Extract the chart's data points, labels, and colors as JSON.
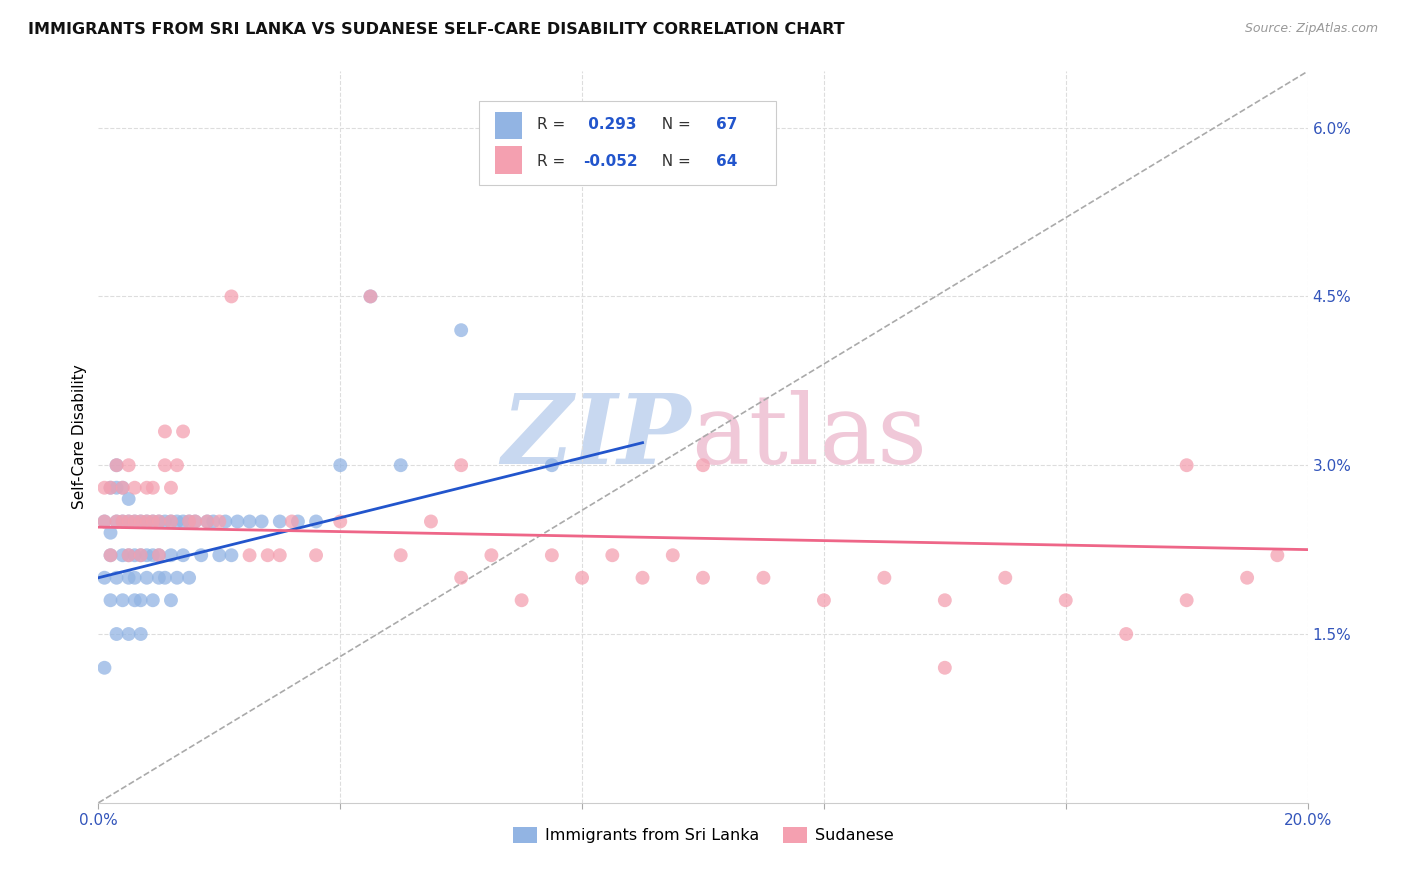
{
  "title": "IMMIGRANTS FROM SRI LANKA VS SUDANESE SELF-CARE DISABILITY CORRELATION CHART",
  "source": "Source: ZipAtlas.com",
  "ylabel": "Self-Care Disability",
  "x_min": 0.0,
  "x_max": 0.2,
  "y_min": 0.0,
  "y_max": 0.065,
  "y_ticks_right": [
    0.015,
    0.03,
    0.045,
    0.06
  ],
  "y_tick_labels_right": [
    "1.5%",
    "3.0%",
    "4.5%",
    "6.0%"
  ],
  "sri_lanka_R": 0.293,
  "sri_lanka_N": 67,
  "sudanese_R": -0.052,
  "sudanese_N": 64,
  "sri_lanka_color": "#92B4E3",
  "sudanese_color": "#F4A0B0",
  "sri_lanka_line_color": "#2255CC",
  "sudanese_line_color": "#EE6688",
  "diagonal_line_color": "#AAAAAA",
  "watermark_color_zip": "#C8D8F0",
  "watermark_color_atlas": "#F0C8D8",
  "legend_label_1": "Immigrants from Sri Lanka",
  "legend_label_2": "Sudanese",
  "sri_lanka_x": [
    0.001,
    0.001,
    0.001,
    0.002,
    0.002,
    0.002,
    0.002,
    0.003,
    0.003,
    0.003,
    0.003,
    0.003,
    0.004,
    0.004,
    0.004,
    0.004,
    0.005,
    0.005,
    0.005,
    0.005,
    0.005,
    0.006,
    0.006,
    0.006,
    0.006,
    0.007,
    0.007,
    0.007,
    0.007,
    0.008,
    0.008,
    0.008,
    0.009,
    0.009,
    0.009,
    0.01,
    0.01,
    0.01,
    0.011,
    0.011,
    0.012,
    0.012,
    0.012,
    0.013,
    0.013,
    0.014,
    0.014,
    0.015,
    0.015,
    0.016,
    0.017,
    0.018,
    0.019,
    0.02,
    0.021,
    0.022,
    0.023,
    0.025,
    0.027,
    0.03,
    0.033,
    0.036,
    0.04,
    0.045,
    0.05,
    0.06,
    0.075
  ],
  "sri_lanka_y": [
    0.02,
    0.025,
    0.012,
    0.018,
    0.024,
    0.028,
    0.022,
    0.025,
    0.028,
    0.02,
    0.015,
    0.03,
    0.022,
    0.018,
    0.025,
    0.028,
    0.02,
    0.015,
    0.025,
    0.022,
    0.027,
    0.018,
    0.022,
    0.025,
    0.02,
    0.015,
    0.018,
    0.022,
    0.025,
    0.02,
    0.025,
    0.022,
    0.018,
    0.022,
    0.025,
    0.02,
    0.025,
    0.022,
    0.02,
    0.025,
    0.018,
    0.022,
    0.025,
    0.02,
    0.025,
    0.022,
    0.025,
    0.02,
    0.025,
    0.025,
    0.022,
    0.025,
    0.025,
    0.022,
    0.025,
    0.022,
    0.025,
    0.025,
    0.025,
    0.025,
    0.025,
    0.025,
    0.03,
    0.045,
    0.03,
    0.042,
    0.03
  ],
  "sudanese_x": [
    0.001,
    0.001,
    0.002,
    0.002,
    0.003,
    0.003,
    0.004,
    0.004,
    0.005,
    0.005,
    0.005,
    0.006,
    0.006,
    0.007,
    0.007,
    0.008,
    0.008,
    0.009,
    0.009,
    0.01,
    0.01,
    0.011,
    0.011,
    0.012,
    0.012,
    0.013,
    0.014,
    0.015,
    0.016,
    0.018,
    0.02,
    0.022,
    0.025,
    0.028,
    0.032,
    0.036,
    0.04,
    0.045,
    0.05,
    0.055,
    0.06,
    0.065,
    0.07,
    0.075,
    0.08,
    0.085,
    0.09,
    0.095,
    0.1,
    0.11,
    0.12,
    0.13,
    0.14,
    0.15,
    0.16,
    0.17,
    0.18,
    0.19,
    0.195,
    0.06,
    0.1,
    0.14,
    0.18,
    0.03
  ],
  "sudanese_y": [
    0.025,
    0.028,
    0.022,
    0.028,
    0.025,
    0.03,
    0.025,
    0.028,
    0.022,
    0.025,
    0.03,
    0.025,
    0.028,
    0.022,
    0.025,
    0.025,
    0.028,
    0.025,
    0.028,
    0.022,
    0.025,
    0.03,
    0.033,
    0.025,
    0.028,
    0.03,
    0.033,
    0.025,
    0.025,
    0.025,
    0.025,
    0.045,
    0.022,
    0.022,
    0.025,
    0.022,
    0.025,
    0.045,
    0.022,
    0.025,
    0.02,
    0.022,
    0.018,
    0.022,
    0.02,
    0.022,
    0.02,
    0.022,
    0.02,
    0.02,
    0.018,
    0.02,
    0.018,
    0.02,
    0.018,
    0.015,
    0.018,
    0.02,
    0.022,
    0.03,
    0.03,
    0.012,
    0.03,
    0.022
  ],
  "sri_lanka_line_x0": 0.0,
  "sri_lanka_line_y0": 0.02,
  "sri_lanka_line_x1": 0.09,
  "sri_lanka_line_y1": 0.032,
  "sudanese_line_x0": 0.0,
  "sudanese_line_y0": 0.0245,
  "sudanese_line_x1": 0.2,
  "sudanese_line_y1": 0.0225
}
